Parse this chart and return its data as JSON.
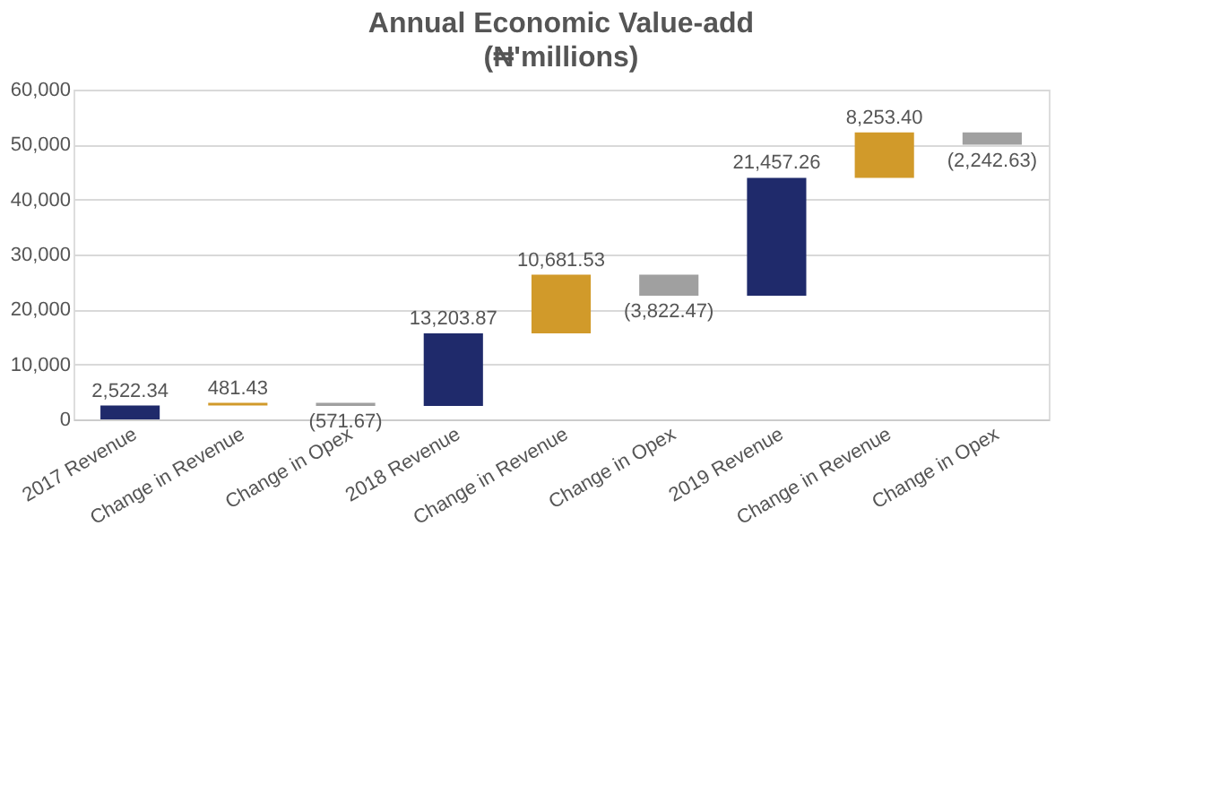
{
  "chart_data": {
    "type": "bar",
    "title": "Annual Economic Value-add",
    "subtitle": "(₦'millions)",
    "categories": [
      "2017 Revenue",
      "Change in Revenue",
      "Change in Opex",
      "2018 Revenue",
      "Change in Revenue",
      "Change in Opex",
      "2019 Revenue",
      "Change in Revenue",
      "Change in Opex"
    ],
    "values": [
      2522.34,
      481.43,
      -571.67,
      13203.87,
      10681.53,
      -3822.47,
      21457.26,
      8253.4,
      -2242.63
    ],
    "base": [
      0,
      2522.34,
      3003.77,
      2432.1,
      15635.97,
      26317.5,
      22495.03,
      43952.29,
      52205.69
    ],
    "colors": [
      "#1f2a6b",
      "#d19a2a",
      "#a0a0a0",
      "#1f2a6b",
      "#d19a2a",
      "#a0a0a0",
      "#1f2a6b",
      "#d19a2a",
      "#a0a0a0"
    ],
    "value_labels": [
      "2,522.34",
      "481.43",
      "(571.67)",
      "13,203.87",
      "10,681.53",
      "(3,822.47)",
      "21,457.26",
      "8,253.40",
      "(2,242.63)"
    ],
    "ylim": [
      0,
      60000
    ],
    "yticks": [
      {
        "value": 0,
        "label": "0"
      },
      {
        "value": 10000,
        "label": "10,000"
      },
      {
        "value": 20000,
        "label": "20,000"
      },
      {
        "value": 30000,
        "label": "30,000"
      },
      {
        "value": 40000,
        "label": "40,000"
      },
      {
        "value": 50000,
        "label": "50,000"
      },
      {
        "value": 60000,
        "label": "60,000"
      }
    ],
    "grid": "y"
  }
}
